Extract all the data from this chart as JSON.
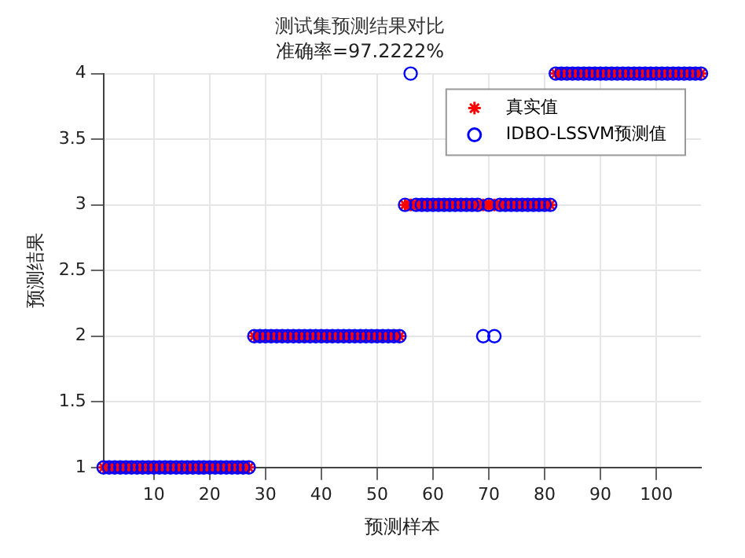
{
  "chart_data": {
    "type": "scatter",
    "title": "测试集预测结果对比",
    "subtitle": "准确率=97.2222%",
    "xlabel": "预测样本",
    "ylabel": "预测结果",
    "x": [
      1,
      2,
      3,
      4,
      5,
      6,
      7,
      8,
      9,
      10,
      11,
      12,
      13,
      14,
      15,
      16,
      17,
      18,
      19,
      20,
      21,
      22,
      23,
      24,
      25,
      26,
      27,
      28,
      29,
      30,
      31,
      32,
      33,
      34,
      35,
      36,
      37,
      38,
      39,
      40,
      41,
      42,
      43,
      44,
      45,
      46,
      47,
      48,
      49,
      50,
      51,
      52,
      53,
      54,
      55,
      56,
      57,
      58,
      59,
      60,
      61,
      62,
      63,
      64,
      65,
      66,
      67,
      68,
      69,
      70,
      71,
      72,
      73,
      74,
      75,
      76,
      77,
      78,
      79,
      80,
      81,
      82,
      83,
      84,
      85,
      86,
      87,
      88,
      89,
      90,
      91,
      92,
      93,
      94,
      95,
      96,
      97,
      98,
      99,
      100,
      101,
      102,
      103,
      104,
      105,
      106,
      107,
      108
    ],
    "series": [
      {
        "name": "真实值",
        "color": "#ff0000",
        "marker": "cross",
        "values": [
          1,
          1,
          1,
          1,
          1,
          1,
          1,
          1,
          1,
          1,
          1,
          1,
          1,
          1,
          1,
          1,
          1,
          1,
          1,
          1,
          1,
          1,
          1,
          1,
          1,
          1,
          1,
          2,
          2,
          2,
          2,
          2,
          2,
          2,
          2,
          2,
          2,
          2,
          2,
          2,
          2,
          2,
          2,
          2,
          2,
          2,
          2,
          2,
          2,
          2,
          2,
          2,
          2,
          2,
          3,
          3,
          3,
          3,
          3,
          3,
          3,
          3,
          3,
          3,
          3,
          3,
          3,
          3,
          3,
          3,
          3,
          3,
          3,
          3,
          3,
          3,
          3,
          3,
          3,
          3,
          3,
          4,
          4,
          4,
          4,
          4,
          4,
          4,
          4,
          4,
          4,
          4,
          4,
          4,
          4,
          4,
          4,
          4,
          4,
          4,
          4,
          4,
          4,
          4,
          4,
          4,
          4,
          4
        ]
      },
      {
        "name": "IDBO-LSSVM预测值",
        "color": "#0000ff",
        "marker": "circle",
        "values": [
          1,
          1,
          1,
          1,
          1,
          1,
          1,
          1,
          1,
          1,
          1,
          1,
          1,
          1,
          1,
          1,
          1,
          1,
          1,
          1,
          1,
          1,
          1,
          1,
          1,
          1,
          1,
          2,
          2,
          2,
          2,
          2,
          2,
          2,
          2,
          2,
          2,
          2,
          2,
          2,
          2,
          2,
          2,
          2,
          2,
          2,
          2,
          2,
          2,
          2,
          2,
          2,
          2,
          2,
          3,
          4,
          3,
          3,
          3,
          3,
          3,
          3,
          3,
          3,
          3,
          3,
          3,
          3,
          2,
          3,
          2,
          3,
          3,
          3,
          3,
          3,
          3,
          3,
          3,
          3,
          3,
          4,
          4,
          4,
          4,
          4,
          4,
          4,
          4,
          4,
          4,
          4,
          4,
          4,
          4,
          4,
          4,
          4,
          4,
          4,
          4,
          4,
          4,
          4,
          4,
          4,
          4,
          4
        ]
      }
    ],
    "xlim": [
      1,
      108
    ],
    "xticks": [
      10,
      20,
      30,
      40,
      50,
      60,
      70,
      80,
      90,
      100
    ],
    "ylim": [
      1,
      4
    ],
    "yticks": [
      1,
      1.5,
      2,
      2.5,
      3,
      3.5,
      4
    ],
    "grid": true,
    "legend": "top right"
  }
}
